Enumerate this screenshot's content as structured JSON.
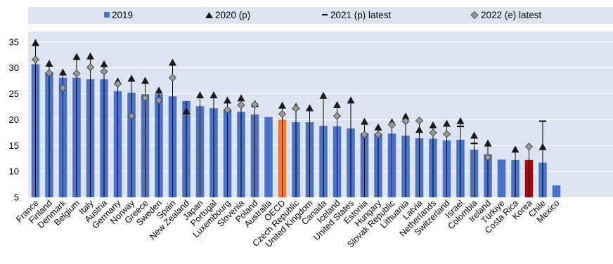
{
  "chart_data": {
    "type": "bar",
    "categories": [
      "France",
      "Finland",
      "Denmark",
      "Belgium",
      "Italy",
      "Austria",
      "Germany",
      "Norway",
      "Greece",
      "Sweden",
      "Spain",
      "New Zealand",
      "Japan",
      "Portugal",
      "Luxembourg",
      "Slovenia",
      "Poland",
      "Australia",
      "OECD",
      "Czech Republic",
      "United Kingdom",
      "Canada",
      "Iceland",
      "United States",
      "Estonia",
      "Hungary",
      "Slovak Republic",
      "Lithuania",
      "Latvia",
      "Netherlands",
      "Switzerland",
      "Israel",
      "Colombia",
      "Ireland",
      "Türkiye",
      "Costa Rica",
      "Korea",
      "Chile",
      "Mexico"
    ],
    "series": [
      {
        "name": "2019",
        "kind": "bar",
        "values": [
          30.7,
          29.2,
          28.1,
          28.1,
          27.8,
          27.8,
          25.5,
          25.2,
          24.9,
          24.9,
          24.5,
          23.6,
          22.6,
          22.2,
          21.9,
          21.5,
          21.0,
          20.5,
          20.0,
          19.5,
          19.5,
          18.8,
          18.7,
          18.3,
          17.4,
          17.3,
          17.3,
          16.9,
          16.4,
          16.3,
          16.0,
          16.1,
          14.2,
          13.3,
          12.3,
          12.2,
          12.2,
          11.7,
          7.3
        ]
      },
      {
        "name": "2020 (p)",
        "kind": "triangle",
        "values": [
          34.9,
          30.9,
          29.2,
          32.2,
          32.3,
          30.8,
          27.5,
          28.0,
          27.6,
          25.7,
          31.1,
          21.7,
          24.8,
          24.8,
          23.8,
          24.2,
          23.1,
          null,
          22.8,
          22.6,
          22.3,
          24.7,
          22.9,
          23.8,
          19.7,
          18.6,
          19.6,
          20.7,
          18.1,
          19.0,
          19.3,
          19.8,
          17.0,
          15.5,
          null,
          14.3,
          null,
          14.8,
          null
        ]
      },
      {
        "name": "2021 (p) latest",
        "kind": "dash",
        "values": [
          null,
          null,
          null,
          null,
          null,
          null,
          null,
          null,
          null,
          null,
          null,
          null,
          null,
          null,
          null,
          null,
          null,
          null,
          null,
          null,
          null,
          null,
          null,
          null,
          null,
          null,
          null,
          null,
          null,
          null,
          null,
          18.7,
          15.4,
          null,
          null,
          null,
          null,
          19.7,
          null
        ]
      },
      {
        "name": "2022 (e) latest",
        "kind": "diamond",
        "values": [
          31.6,
          29.0,
          26.1,
          28.9,
          30.1,
          29.3,
          26.9,
          20.7,
          24.2,
          23.7,
          28.1,
          null,
          null,
          null,
          21.9,
          22.8,
          22.9,
          null,
          21.1,
          22.2,
          null,
          null,
          20.7,
          null,
          17.1,
          17.1,
          19.0,
          19.7,
          19.8,
          17.5,
          17.2,
          null,
          null,
          12.7,
          null,
          null,
          14.8,
          null,
          null
        ]
      }
    ],
    "highlight": {
      "OECD": "#ee7d31",
      "Korea": "#c00000"
    },
    "bar_color": "#4a72c6",
    "marker_color": "#1a1a1a",
    "diamond_color": "#9a9a9a",
    "title": "",
    "xlabel": "",
    "ylabel": "",
    "ylim": [
      5,
      37
    ],
    "yticks": [
      5,
      10,
      15,
      20,
      25,
      30,
      35
    ],
    "grid": true,
    "legend": "top"
  },
  "legend": {
    "items": [
      {
        "label": "2019"
      },
      {
        "label": "2020 (p)"
      },
      {
        "label": "2021 (p) latest"
      },
      {
        "label": "2022 (e) latest"
      }
    ]
  }
}
